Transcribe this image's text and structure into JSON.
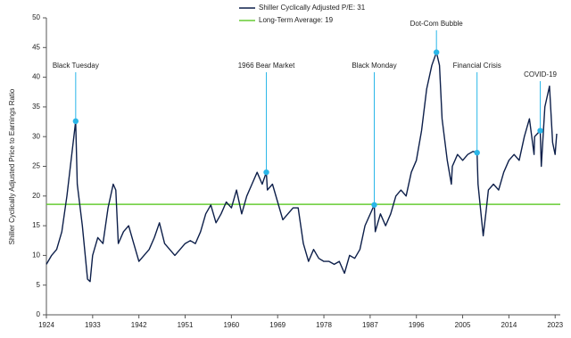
{
  "chart_data": {
    "type": "line",
    "y_axis_label": "Shiller Cyclically Adjusted Price to Earnings Ratio",
    "xlim": [
      1924,
      2024
    ],
    "xticks": [
      1924,
      1933,
      1942,
      1951,
      1960,
      1969,
      1978,
      1987,
      1996,
      2005,
      2014,
      2023
    ],
    "ylim": [
      0,
      50
    ],
    "yticks": [
      0,
      5,
      10,
      15,
      20,
      25,
      30,
      35,
      40,
      45,
      50
    ],
    "grid": false,
    "legend": "top",
    "series": [
      {
        "name": "Shiller Cyclically Adjusted P/E: 31",
        "color": "#0d1f4a",
        "x": [
          1924,
          1925,
          1926,
          1927,
          1928,
          1929.7,
          1930,
          1931,
          1932,
          1932.5,
          1933,
          1934,
          1935,
          1936,
          1937,
          1937.5,
          1938,
          1939,
          1940,
          1941,
          1942,
          1943,
          1944,
          1945,
          1946,
          1947,
          1948,
          1949,
          1950,
          1951,
          1952,
          1953,
          1954,
          1955,
          1956,
          1957,
          1958,
          1959,
          1960,
          1961,
          1962,
          1963,
          1964,
          1965,
          1966,
          1966.8,
          1967,
          1968,
          1969,
          1970,
          1971,
          1972,
          1973,
          1974,
          1975,
          1976,
          1977,
          1978,
          1979,
          1980,
          1981,
          1982,
          1983,
          1984,
          1985,
          1986,
          1987.8,
          1988,
          1989,
          1990,
          1991,
          1992,
          1993,
          1994,
          1995,
          1996,
          1997,
          1998,
          1999,
          1999.9,
          2000.5,
          2001,
          2002,
          2002.8,
          2003,
          2004,
          2005,
          2006,
          2007,
          2007.8,
          2008,
          2009,
          2009.5,
          2010,
          2011,
          2012,
          2013,
          2014,
          2015,
          2016,
          2017,
          2018,
          2018.9,
          2019,
          2020.1,
          2020.3,
          2021,
          2021.9,
          2022.5,
          2023,
          2023.3
        ],
        "values": [
          8.5,
          10,
          11,
          14,
          20,
          32.6,
          22,
          15,
          6,
          5.6,
          10,
          13,
          12,
          18,
          22,
          21,
          12,
          14,
          15,
          12,
          9,
          10,
          11,
          13,
          15.5,
          12,
          11,
          10,
          11,
          12,
          12.5,
          12,
          14,
          17,
          18.5,
          15.5,
          17,
          19,
          18,
          21,
          17,
          20,
          22,
          24,
          22,
          24,
          21,
          22,
          19,
          16,
          17,
          18,
          18,
          12,
          9,
          11,
          9.5,
          9,
          9,
          8.5,
          9,
          7,
          10,
          9.5,
          11,
          15,
          18.5,
          14,
          17,
          15,
          17,
          20,
          21,
          20,
          24,
          26,
          31,
          38,
          42,
          44.2,
          42,
          33,
          26,
          22,
          25,
          27,
          26,
          27,
          27.5,
          27.3,
          22,
          13.3,
          17,
          21,
          22,
          21,
          24,
          26,
          27,
          26,
          30,
          33,
          27,
          30,
          31,
          25,
          35,
          38.5,
          29,
          27,
          30.5
        ]
      }
    ],
    "reference_line": {
      "name": "Long-Term Average: 19",
      "value": 18.6,
      "color": "#66cc33"
    },
    "annotations": [
      {
        "label": "Black Tuesday",
        "x": 1929.7,
        "y": 32.6
      },
      {
        "label": "1966 Bear Market",
        "x": 1966.8,
        "y": 24
      },
      {
        "label": "Black Monday",
        "x": 1987.8,
        "y": 18.5
      },
      {
        "label": "Dot-Com Bubble",
        "x": 1999.9,
        "y": 44.2
      },
      {
        "label": "Financial  Crisis",
        "x": 2007.8,
        "y": 27.3
      },
      {
        "label": "COVID-19",
        "x": 2020.1,
        "y": 31
      }
    ],
    "marker_color": "#29b6e8"
  }
}
